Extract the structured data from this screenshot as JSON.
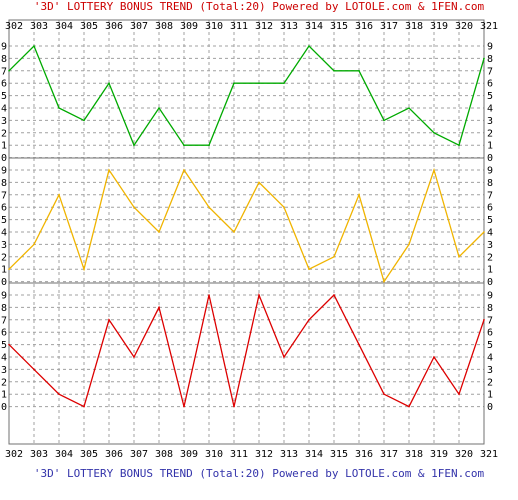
{
  "title": "'3D' LOTTERY BONUS TREND (Total:20)  Powered by LOTOLE.com & 1FEN.com",
  "footer": "'3D' LOTTERY BONUS TREND (Total:20)  Powered by LOTOLE.com & 1FEN.com",
  "chart_data": {
    "type": "line",
    "categories": [
      "302",
      "303",
      "304",
      "305",
      "306",
      "307",
      "308",
      "309",
      "310",
      "311",
      "312",
      "313",
      "314",
      "315",
      "316",
      "317",
      "318",
      "319",
      "320",
      "321"
    ],
    "y_ticks": [
      "0",
      "1",
      "2",
      "3",
      "4",
      "5",
      "6",
      "7",
      "8",
      "9"
    ],
    "ylim": [
      0,
      9
    ],
    "grid": true,
    "series": [
      {
        "color": "#00aa00",
        "values": [
          7,
          9,
          4,
          3,
          6,
          1,
          4,
          1,
          1,
          6,
          6,
          6,
          9,
          7,
          7,
          3,
          4,
          2,
          1,
          8
        ]
      },
      {
        "color": "#f0b400",
        "values": [
          1,
          3,
          7,
          1,
          9,
          6,
          4,
          9,
          6,
          4,
          8,
          6,
          1,
          2,
          7,
          0,
          3,
          9,
          2,
          4
        ]
      },
      {
        "color": "#dd0000",
        "values": [
          5,
          3,
          1,
          0,
          7,
          4,
          8,
          0,
          9,
          0,
          9,
          4,
          7,
          9,
          5,
          1,
          0,
          4,
          1,
          7
        ]
      }
    ]
  }
}
